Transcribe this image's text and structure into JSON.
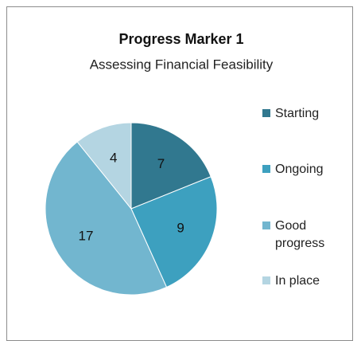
{
  "chart_data": {
    "type": "pie",
    "title": "Progress Marker 1",
    "subtitle": "Assessing Financial Feasibility",
    "categories": [
      "Starting",
      "Ongoing",
      "Good progress",
      "In place"
    ],
    "values": [
      7,
      9,
      17,
      4
    ],
    "colors": [
      "#31788f",
      "#3da0bf",
      "#72b6cf",
      "#b4d5e2"
    ],
    "legend": "right"
  }
}
